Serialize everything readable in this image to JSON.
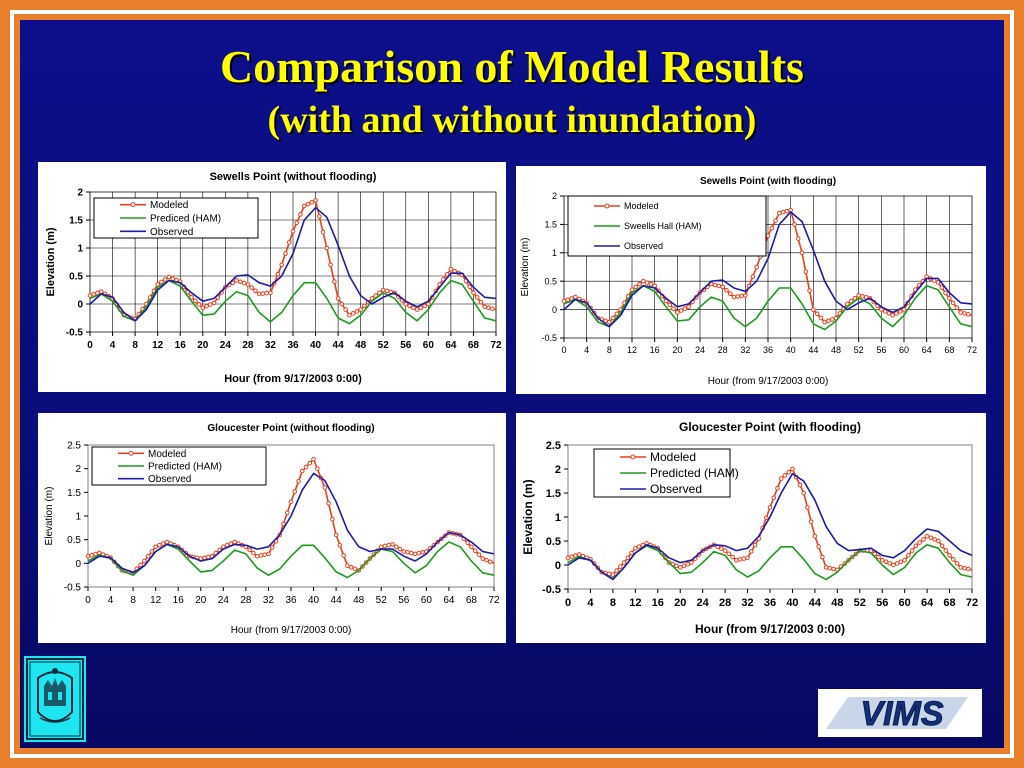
{
  "slide": {
    "title": "Comparison of Model Results",
    "subtitle": "(with and without inundation)",
    "logo_text": "VIMS"
  },
  "colors": {
    "background": "#0b0d80",
    "title": "#ffff00",
    "border": "#e8802e",
    "modeled": "#e8401c",
    "predicted": "#1e9a1e",
    "observed": "#1c1ca8"
  },
  "chart_data": [
    {
      "type": "line",
      "title": "Sewells Point (without flooding)",
      "xlabel": "Hour (from 9/17/2003 0:00)",
      "ylabel": "Elevation (m)",
      "x_ticks": [
        "0",
        "4",
        "8",
        "12",
        "16",
        "20",
        "24",
        "28",
        "32",
        "36",
        "40",
        "44",
        "48",
        "52",
        "56",
        "60",
        "64",
        "68",
        "72"
      ],
      "y_ticks": [
        "-0.5",
        "0",
        "0.5",
        "1",
        "1.5",
        "2"
      ],
      "xlim": [
        0,
        72
      ],
      "ylim": [
        -0.5,
        2
      ],
      "grid": true,
      "legend": "top-left",
      "series": [
        {
          "name": "Modeled",
          "marker": "circle",
          "x": [
            0,
            2,
            4,
            6,
            8,
            10,
            12,
            14,
            16,
            18,
            20,
            22,
            24,
            26,
            28,
            30,
            32,
            34,
            36,
            38,
            40,
            42,
            44,
            46,
            48,
            50,
            52,
            54,
            56,
            58,
            60,
            62,
            64,
            66,
            68,
            70,
            72
          ],
          "y": [
            0.15,
            0.22,
            0.1,
            -0.2,
            -0.27,
            0,
            0.35,
            0.48,
            0.4,
            0.12,
            -0.07,
            0.02,
            0.3,
            0.42,
            0.35,
            0.18,
            0.2,
            0.7,
            1.3,
            1.75,
            1.85,
            1.0,
            0.1,
            -0.2,
            -0.1,
            0.1,
            0.25,
            0.2,
            0.0,
            -0.1,
            0.0,
            0.35,
            0.62,
            0.52,
            0.2,
            -0.05,
            -0.1
          ]
        },
        {
          "name": "Prediced (HAM)",
          "x": [
            0,
            2,
            4,
            6,
            8,
            10,
            12,
            14,
            16,
            18,
            20,
            22,
            24,
            26,
            28,
            30,
            32,
            34,
            36,
            38,
            40,
            42,
            44,
            46,
            48,
            50,
            52,
            54,
            56,
            58,
            60,
            62,
            64,
            66,
            68,
            70,
            72
          ],
          "y": [
            0.1,
            0.18,
            0.05,
            -0.22,
            -0.3,
            -0.05,
            0.3,
            0.42,
            0.32,
            0.05,
            -0.2,
            -0.18,
            0.05,
            0.22,
            0.15,
            -0.15,
            -0.32,
            -0.15,
            0.15,
            0.38,
            0.38,
            0.1,
            -0.25,
            -0.35,
            -0.2,
            0.05,
            0.2,
            0.1,
            -0.15,
            -0.3,
            -0.1,
            0.2,
            0.42,
            0.35,
            0.05,
            -0.25,
            -0.3
          ]
        },
        {
          "name": "Observed",
          "x": [
            0,
            2,
            4,
            6,
            8,
            10,
            12,
            14,
            16,
            18,
            20,
            22,
            24,
            26,
            28,
            30,
            32,
            34,
            36,
            38,
            40,
            42,
            44,
            46,
            48,
            50,
            52,
            54,
            56,
            58,
            60,
            62,
            64,
            66,
            68,
            70,
            72
          ],
          "y": [
            0.0,
            0.18,
            0.12,
            -0.15,
            -0.3,
            -0.1,
            0.25,
            0.42,
            0.38,
            0.2,
            0.05,
            0.1,
            0.3,
            0.5,
            0.52,
            0.38,
            0.32,
            0.5,
            0.9,
            1.5,
            1.72,
            1.55,
            1.05,
            0.5,
            0.15,
            0.0,
            0.12,
            0.2,
            0.05,
            -0.05,
            0.05,
            0.3,
            0.55,
            0.55,
            0.3,
            0.12,
            0.1
          ]
        }
      ]
    },
    {
      "type": "line",
      "title": "Sewells Point (with flooding)",
      "xlabel": "Hour (from 9/17/2003 0:00)",
      "ylabel": "Elevation (m)",
      "x_ticks": [
        "0",
        "4",
        "8",
        "12",
        "16",
        "20",
        "24",
        "28",
        "32",
        "36",
        "40",
        "44",
        "48",
        "52",
        "56",
        "60",
        "64",
        "68",
        "72"
      ],
      "y_ticks": [
        "-0.5",
        "0",
        "0.5",
        "1",
        "1.5",
        "2"
      ],
      "xlim": [
        0,
        72
      ],
      "ylim": [
        -0.5,
        2
      ],
      "grid": true,
      "legend": "top-left",
      "series": [
        {
          "name": "Modeled",
          "marker": "circle",
          "x": [
            0,
            2,
            4,
            6,
            8,
            10,
            12,
            14,
            16,
            18,
            20,
            22,
            24,
            26,
            28,
            30,
            32,
            34,
            36,
            38,
            40,
            42,
            44,
            46,
            48,
            50,
            52,
            54,
            56,
            58,
            60,
            62,
            64,
            66,
            68,
            70,
            72
          ],
          "y": [
            0.15,
            0.22,
            0.12,
            -0.15,
            -0.22,
            0.0,
            0.35,
            0.5,
            0.42,
            0.15,
            -0.05,
            0.05,
            0.3,
            0.45,
            0.4,
            0.22,
            0.25,
            0.75,
            1.3,
            1.7,
            1.75,
            1.0,
            0.0,
            -0.22,
            -0.15,
            0.1,
            0.25,
            0.2,
            0.0,
            -0.1,
            0.0,
            0.35,
            0.58,
            0.48,
            0.2,
            -0.05,
            -0.1
          ]
        },
        {
          "name": "Sweells Hall (HAM)",
          "x": [
            0,
            2,
            4,
            6,
            8,
            10,
            12,
            14,
            16,
            18,
            20,
            22,
            24,
            26,
            28,
            30,
            32,
            34,
            36,
            38,
            40,
            42,
            44,
            46,
            48,
            50,
            52,
            54,
            56,
            58,
            60,
            62,
            64,
            66,
            68,
            70,
            72
          ],
          "y": [
            0.1,
            0.18,
            0.05,
            -0.22,
            -0.3,
            -0.05,
            0.3,
            0.42,
            0.32,
            0.05,
            -0.2,
            -0.18,
            0.05,
            0.22,
            0.15,
            -0.15,
            -0.3,
            -0.15,
            0.15,
            0.38,
            0.38,
            0.1,
            -0.25,
            -0.35,
            -0.2,
            0.05,
            0.2,
            0.1,
            -0.15,
            -0.3,
            -0.1,
            0.2,
            0.42,
            0.35,
            0.05,
            -0.25,
            -0.3
          ]
        },
        {
          "name": "Observed",
          "x": [
            0,
            2,
            4,
            6,
            8,
            10,
            12,
            14,
            16,
            18,
            20,
            22,
            24,
            26,
            28,
            30,
            32,
            34,
            36,
            38,
            40,
            42,
            44,
            46,
            48,
            50,
            52,
            54,
            56,
            58,
            60,
            62,
            64,
            66,
            68,
            70,
            72
          ],
          "y": [
            0.0,
            0.18,
            0.12,
            -0.15,
            -0.3,
            -0.1,
            0.25,
            0.42,
            0.38,
            0.2,
            0.05,
            0.1,
            0.3,
            0.5,
            0.52,
            0.38,
            0.32,
            0.5,
            0.9,
            1.5,
            1.72,
            1.55,
            1.05,
            0.5,
            0.15,
            0.0,
            0.12,
            0.2,
            0.05,
            -0.05,
            0.05,
            0.3,
            0.55,
            0.55,
            0.3,
            0.12,
            0.1
          ]
        }
      ]
    },
    {
      "type": "line",
      "title": "Gloucester Point (without flooding)",
      "xlabel": "Hour (from 9/17/2003 0:00)",
      "ylabel": "Elevation (m)",
      "x_ticks": [
        "0",
        "4",
        "8",
        "12",
        "16",
        "20",
        "24",
        "28",
        "32",
        "36",
        "40",
        "44",
        "48",
        "52",
        "56",
        "60",
        "64",
        "68",
        "72"
      ],
      "y_ticks": [
        "-0.5",
        "0",
        "0.5",
        "1",
        "1.5",
        "2",
        "2.5"
      ],
      "xlim": [
        0,
        72
      ],
      "ylim": [
        -0.5,
        2.5
      ],
      "grid": false,
      "legend": "top-left",
      "series": [
        {
          "name": "Modeled",
          "marker": "circle",
          "x": [
            0,
            2,
            4,
            6,
            8,
            10,
            12,
            14,
            16,
            18,
            20,
            22,
            24,
            26,
            28,
            30,
            32,
            34,
            36,
            38,
            40,
            42,
            44,
            46,
            48,
            50,
            52,
            54,
            56,
            58,
            60,
            62,
            64,
            66,
            68,
            70,
            72
          ],
          "y": [
            0.15,
            0.22,
            0.12,
            -0.15,
            -0.2,
            0.05,
            0.35,
            0.45,
            0.35,
            0.15,
            0.1,
            0.15,
            0.35,
            0.45,
            0.35,
            0.15,
            0.2,
            0.6,
            1.3,
            1.95,
            2.2,
            1.6,
            0.6,
            -0.05,
            -0.15,
            0.1,
            0.35,
            0.4,
            0.25,
            0.2,
            0.25,
            0.45,
            0.65,
            0.6,
            0.35,
            0.1,
            0.0
          ]
        },
        {
          "name": "Predicted (HAM)",
          "x": [
            0,
            2,
            4,
            6,
            8,
            10,
            12,
            14,
            16,
            18,
            20,
            22,
            24,
            26,
            28,
            30,
            32,
            34,
            36,
            38,
            40,
            42,
            44,
            46,
            48,
            50,
            52,
            54,
            56,
            58,
            60,
            62,
            64,
            66,
            68,
            70,
            72
          ],
          "y": [
            0.05,
            0.18,
            0.1,
            -0.15,
            -0.25,
            -0.05,
            0.25,
            0.4,
            0.3,
            0.05,
            -0.18,
            -0.15,
            0.05,
            0.28,
            0.2,
            -0.1,
            -0.25,
            -0.12,
            0.15,
            0.38,
            0.38,
            0.12,
            -0.18,
            -0.3,
            -0.15,
            0.1,
            0.3,
            0.25,
            0.0,
            -0.2,
            -0.05,
            0.25,
            0.45,
            0.35,
            0.05,
            -0.2,
            -0.25
          ]
        },
        {
          "name": "Observed",
          "x": [
            0,
            2,
            4,
            6,
            8,
            10,
            12,
            14,
            16,
            18,
            20,
            22,
            24,
            26,
            28,
            30,
            32,
            34,
            36,
            38,
            40,
            42,
            44,
            46,
            48,
            50,
            52,
            54,
            56,
            58,
            60,
            62,
            64,
            66,
            68,
            70,
            72
          ],
          "y": [
            0.0,
            0.15,
            0.12,
            -0.1,
            -0.2,
            -0.05,
            0.25,
            0.4,
            0.35,
            0.15,
            0.05,
            0.1,
            0.3,
            0.4,
            0.38,
            0.3,
            0.35,
            0.6,
            1.0,
            1.55,
            1.9,
            1.75,
            1.3,
            0.7,
            0.35,
            0.25,
            0.3,
            0.3,
            0.15,
            0.05,
            0.2,
            0.45,
            0.65,
            0.6,
            0.45,
            0.25,
            0.2
          ]
        }
      ]
    },
    {
      "type": "line",
      "title": "Gloucester Point (with flooding)",
      "xlabel": "Hour (from 9/17/2003 0:00)",
      "ylabel": "Elevation (m)",
      "x_ticks": [
        "0",
        "4",
        "8",
        "12",
        "16",
        "20",
        "24",
        "28",
        "32",
        "36",
        "40",
        "44",
        "48",
        "52",
        "56",
        "60",
        "64",
        "68",
        "72"
      ],
      "y_ticks": [
        "-0.5",
        "0",
        "0.5",
        "1",
        "1.5",
        "2",
        "2.5"
      ],
      "xlim": [
        0,
        72
      ],
      "ylim": [
        -0.5,
        2.5
      ],
      "grid": false,
      "legend": "top-left",
      "series": [
        {
          "name": "Modeled",
          "marker": "circle",
          "x": [
            0,
            2,
            4,
            6,
            8,
            10,
            12,
            14,
            16,
            18,
            20,
            22,
            24,
            26,
            28,
            30,
            32,
            34,
            36,
            38,
            40,
            42,
            44,
            46,
            48,
            50,
            52,
            54,
            56,
            58,
            60,
            62,
            64,
            66,
            68,
            70,
            72
          ],
          "y": [
            0.15,
            0.22,
            0.12,
            -0.15,
            -0.2,
            0.05,
            0.35,
            0.45,
            0.35,
            0.05,
            -0.05,
            0.05,
            0.3,
            0.42,
            0.3,
            0.1,
            0.15,
            0.55,
            1.2,
            1.8,
            2.0,
            1.5,
            0.6,
            -0.05,
            -0.1,
            0.1,
            0.3,
            0.3,
            0.1,
            0.0,
            0.1,
            0.4,
            0.6,
            0.5,
            0.2,
            -0.05,
            -0.1
          ]
        },
        {
          "name": "Predicted (HAM)",
          "x": [
            0,
            2,
            4,
            6,
            8,
            10,
            12,
            14,
            16,
            18,
            20,
            22,
            24,
            26,
            28,
            30,
            32,
            34,
            36,
            38,
            40,
            42,
            44,
            46,
            48,
            50,
            52,
            54,
            56,
            58,
            60,
            62,
            64,
            66,
            68,
            70,
            72
          ],
          "y": [
            0.05,
            0.18,
            0.1,
            -0.15,
            -0.28,
            -0.05,
            0.25,
            0.4,
            0.3,
            0.05,
            -0.18,
            -0.15,
            0.05,
            0.28,
            0.2,
            -0.1,
            -0.25,
            -0.12,
            0.15,
            0.38,
            0.38,
            0.12,
            -0.18,
            -0.3,
            -0.15,
            0.1,
            0.3,
            0.25,
            0.0,
            -0.2,
            -0.05,
            0.25,
            0.42,
            0.35,
            0.05,
            -0.2,
            -0.25
          ]
        },
        {
          "name": "Observed",
          "x": [
            0,
            2,
            4,
            6,
            8,
            10,
            12,
            14,
            16,
            18,
            20,
            22,
            24,
            26,
            28,
            30,
            32,
            34,
            36,
            38,
            40,
            42,
            44,
            46,
            48,
            50,
            52,
            54,
            56,
            58,
            60,
            62,
            64,
            66,
            68,
            70,
            72
          ],
          "y": [
            0.0,
            0.15,
            0.1,
            -0.15,
            -0.3,
            -0.05,
            0.25,
            0.42,
            0.35,
            0.15,
            0.05,
            0.1,
            0.3,
            0.42,
            0.4,
            0.3,
            0.35,
            0.6,
            1.0,
            1.5,
            1.9,
            1.75,
            1.35,
            0.8,
            0.45,
            0.3,
            0.32,
            0.35,
            0.2,
            0.15,
            0.3,
            0.55,
            0.75,
            0.7,
            0.5,
            0.3,
            0.2
          ]
        }
      ]
    }
  ]
}
